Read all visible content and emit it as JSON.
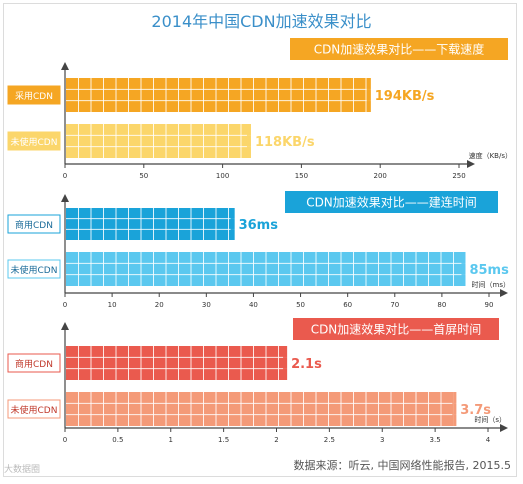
{
  "title": "2014年中国CDN加速效果对比",
  "source": "数据来源：听云, 中国网络性能报告, 2015.5",
  "watermark": "大数据圈",
  "colors": {
    "download_dark": "#f5a623",
    "download_light": "#fbd66b",
    "connect_dark": "#1aa3d9",
    "connect_light": "#5bc8ef",
    "firstscreen_dark": "#ea5a4e",
    "firstscreen_light": "#f49a78",
    "axis": "#444444"
  },
  "chart_data": [
    {
      "type": "bar",
      "orientation": "horizontal",
      "title": "CDN加速效果对比——下载速度",
      "xlabel": "速度（KB/s）",
      "categories": [
        "采用CDN",
        "未使用CDN"
      ],
      "values": [
        194,
        118
      ],
      "value_labels": [
        "194KB/s",
        "118KB/s"
      ],
      "xlim": [
        0,
        250
      ],
      "xticks": [
        0,
        50,
        100,
        150,
        200,
        250
      ],
      "grid": true
    },
    {
      "type": "bar",
      "orientation": "horizontal",
      "title": "CDN加速效果对比——建连时间",
      "xlabel": "时间（ms）",
      "categories": [
        "商用CDN",
        "未使用CDN"
      ],
      "values": [
        36,
        85
      ],
      "value_labels": [
        "36ms",
        "85ms"
      ],
      "xlim": [
        0,
        90
      ],
      "xticks": [
        0,
        10,
        20,
        30,
        40,
        50,
        60,
        70,
        80,
        90
      ],
      "grid": true
    },
    {
      "type": "bar",
      "orientation": "horizontal",
      "title": "CDN加速效果对比——首屏时间",
      "xlabel": "时间（s）",
      "categories": [
        "商用CDN",
        "未使用CDN"
      ],
      "values": [
        2.1,
        3.7
      ],
      "value_labels": [
        "2.1s",
        "3.7s"
      ],
      "xlim": [
        0,
        4
      ],
      "xticks": [
        "0",
        "0.5",
        "1",
        "1.5",
        "2",
        "2.5",
        "3",
        "3.5",
        "4"
      ],
      "grid": true
    }
  ]
}
